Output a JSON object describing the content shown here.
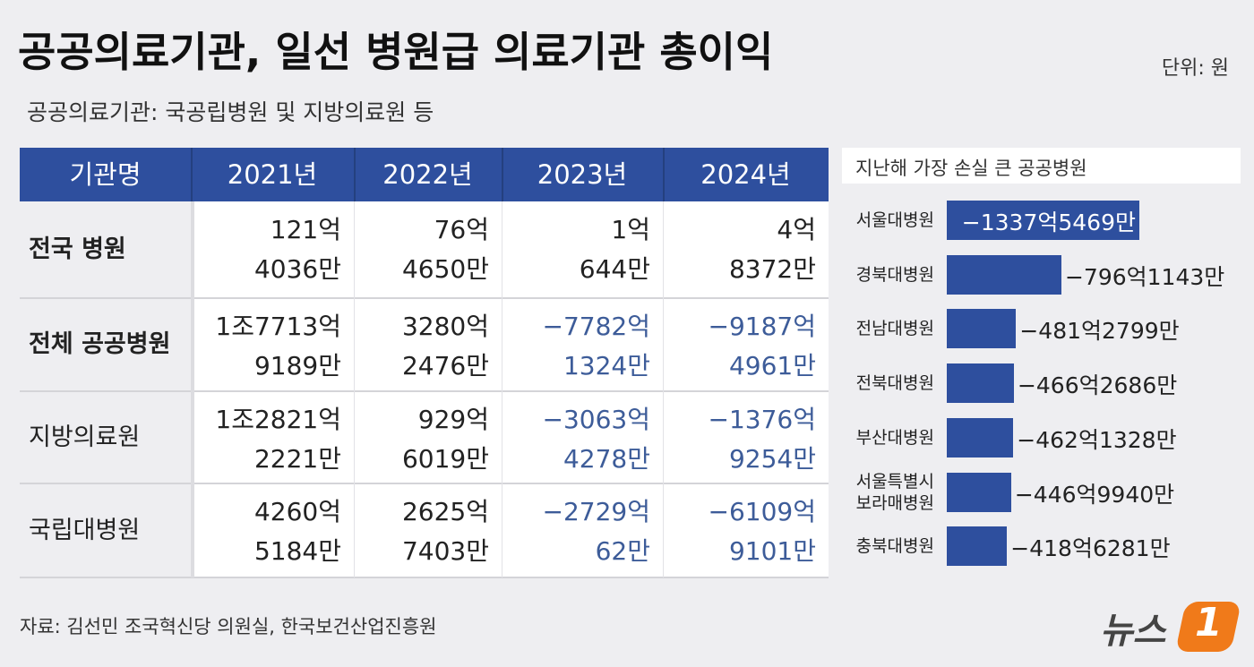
{
  "header": {
    "title": "공공의료기관, 일선 병원급 의료기관 총이익",
    "unit": "단위: 원",
    "subtitle": "공공의료기관: 국공립병원 및 지방의료원 등"
  },
  "table": {
    "header": [
      "기관명",
      "2021년",
      "2022년",
      "2023년",
      "2024년"
    ],
    "rows": [
      {
        "label": "전국 병원",
        "cells": [
          [
            "121억",
            "4036만"
          ],
          [
            "76억",
            "4650만"
          ],
          [
            "1억",
            "644만"
          ],
          [
            "4억",
            "8372만"
          ]
        ]
      },
      {
        "label": "전체 공공병원",
        "cells": [
          [
            "1조7713억",
            "9189만"
          ],
          [
            "3280억",
            "2476만"
          ],
          [
            "−7782억",
            "1324만"
          ],
          [
            "−9187억",
            "4961만"
          ]
        ]
      },
      {
        "label": "지방의료원",
        "cells": [
          [
            "1조2821억",
            "2221만"
          ],
          [
            "929억",
            "6019만"
          ],
          [
            "−3063억",
            "4278만"
          ],
          [
            "−1376억",
            "9254만"
          ]
        ]
      },
      {
        "label": "국립대병원",
        "cells": [
          [
            "4260억",
            "5184만"
          ],
          [
            "2625억",
            "7403만"
          ],
          [
            "−2729억",
            "62만"
          ],
          [
            "−6109억",
            "9101만"
          ]
        ]
      }
    ]
  },
  "chart_data": {
    "type": "bar",
    "orientation": "horizontal",
    "title": "지난해 가장 손실 큰 공공병원",
    "color": "#2e4f9e",
    "categories": [
      "서울대병원",
      "경북대병원",
      "전남대병원",
      "전북대병원",
      "부산대병원",
      "서울특별시 보라매병원",
      "충북대병원"
    ],
    "values": [
      -133754690000,
      -79611430000,
      -48127990000,
      -46626860000,
      -46213280000,
      -44699400000,
      -41862810000
    ],
    "value_labels": [
      "−1337억5469만",
      "−796억1143만",
      "−481억2799만",
      "−466억2686만",
      "−462억1328만",
      "−446억9940만",
      "−418억6281만"
    ]
  },
  "footer": {
    "source": "자료: 김선민 조국혁신당 의원실, 한국보건산업진흥원",
    "logo": "뉴스",
    "logo_mark": "1"
  }
}
